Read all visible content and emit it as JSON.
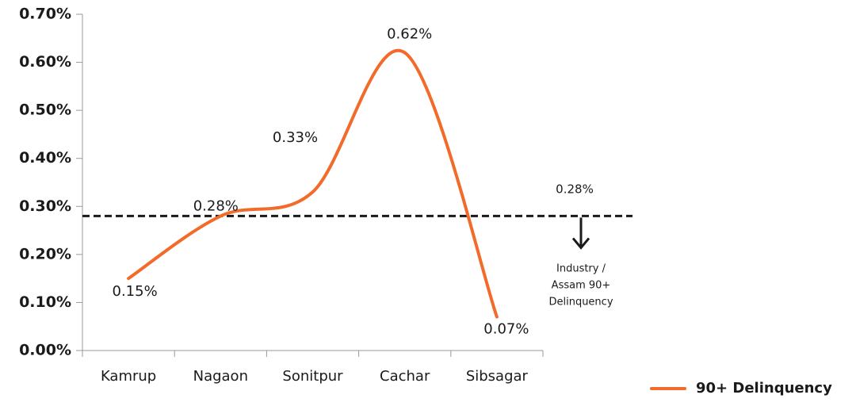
{
  "chart_data": {
    "type": "line",
    "categories": [
      "Kamrup",
      "Nagaon",
      "Sonitpur",
      "Cachar",
      "Sibsagar"
    ],
    "series": [
      {
        "name": "90+ Delinquency",
        "color": "#f26b2a",
        "values": [
          0.15,
          0.28,
          0.33,
          0.62,
          0.07
        ],
        "value_labels": [
          "0.15%",
          "0.28%",
          "0.33%",
          "0.62%",
          "0.07%"
        ]
      }
    ],
    "ylim": [
      0,
      0.7
    ],
    "yticks": [
      {
        "value": 0,
        "label": "0.00%"
      },
      {
        "value": 0.1,
        "label": "0.10%"
      },
      {
        "value": 0.2,
        "label": "0.20%"
      },
      {
        "value": 0.3,
        "label": "0.30%"
      },
      {
        "value": 0.4,
        "label": "0.40%"
      },
      {
        "value": 0.5,
        "label": "0.50%"
      },
      {
        "value": 0.6,
        "label": "0.60%"
      },
      {
        "value": 0.7,
        "label": "0.70%"
      }
    ],
    "reference_line": {
      "value": 0.28,
      "label": "0.28%",
      "annotation": [
        "Industry /",
        "Assam 90+",
        "Delinquency"
      ],
      "color": "#1a1a1a"
    },
    "legend": "bottom-right",
    "smooth": true
  }
}
